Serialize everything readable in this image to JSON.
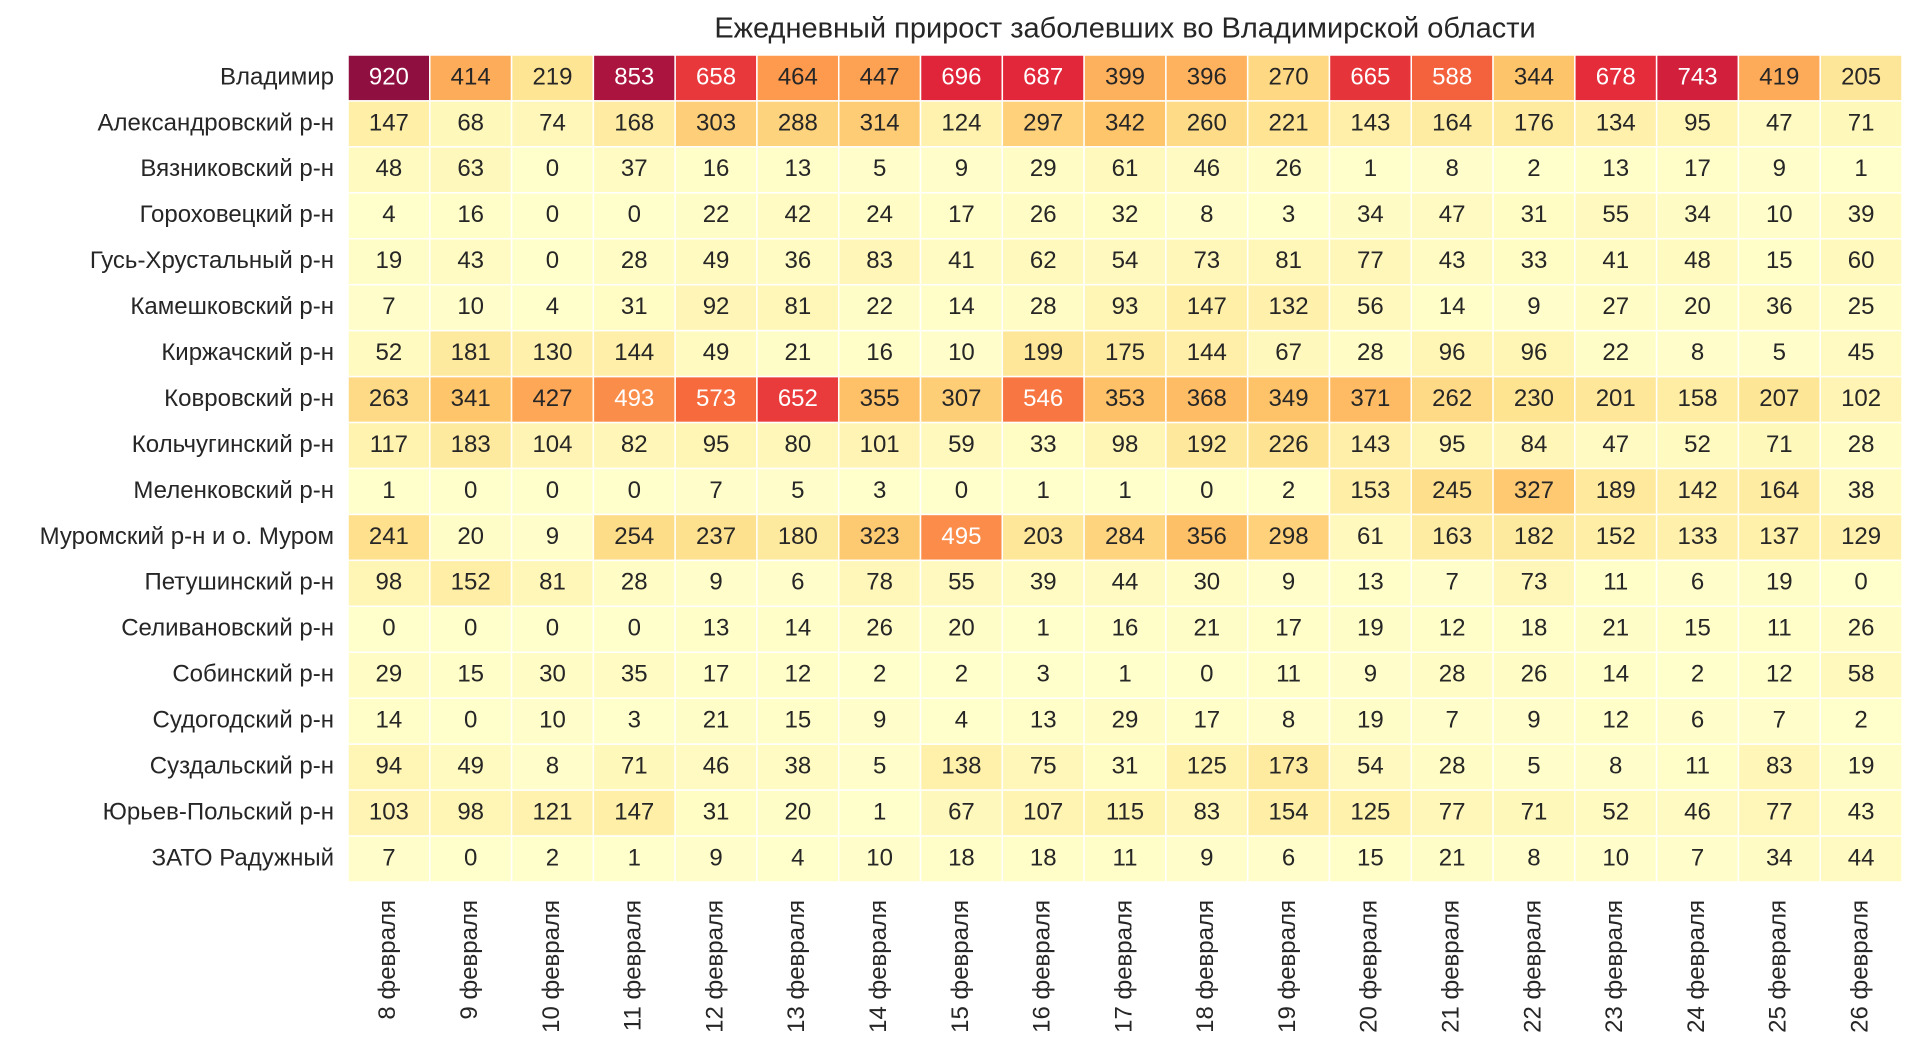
{
  "chart_data": {
    "type": "heatmap",
    "title": "Ежедневный прирост заболевших во Владимирской области",
    "x": [
      "8 февраля",
      "9 февраля",
      "10 февраля",
      "11 февраля",
      "12 февраля",
      "13 февраля",
      "14 февраля",
      "15 февраля",
      "16 февраля",
      "17 февраля",
      "18 февраля",
      "19 февраля",
      "20 февраля",
      "21 февраля",
      "22 февраля",
      "23 февраля",
      "24 февраля",
      "25 февраля",
      "26 февраля"
    ],
    "y": [
      "Владимир",
      "Александровский р-н",
      "Вязниковский р-н",
      "Гороховецкий р-н",
      "Гусь-Хрустальный р-н",
      "Камешковский р-н",
      "Киржачский р-н",
      "Ковровский р-н",
      "Кольчугинский р-н",
      "Меленковский р-н",
      "Муромский р-н и о. Муром",
      "Петушинский р-н",
      "Селивановский р-н",
      "Собинский р-н",
      "Судогодский р-н",
      "Суздальский р-н",
      "Юрьев-Польский р-н",
      "ЗАТО Радужный"
    ],
    "values": [
      [
        920,
        414,
        219,
        853,
        658,
        464,
        447,
        696,
        687,
        399,
        396,
        270,
        665,
        588,
        344,
        678,
        743,
        419,
        205
      ],
      [
        147,
        68,
        74,
        168,
        303,
        288,
        314,
        124,
        297,
        342,
        260,
        221,
        143,
        164,
        176,
        134,
        95,
        47,
        71
      ],
      [
        48,
        63,
        0,
        37,
        16,
        13,
        5,
        9,
        29,
        61,
        46,
        26,
        1,
        8,
        2,
        13,
        17,
        9,
        1
      ],
      [
        4,
        16,
        0,
        0,
        22,
        42,
        24,
        17,
        26,
        32,
        8,
        3,
        34,
        47,
        31,
        55,
        34,
        10,
        39
      ],
      [
        19,
        43,
        0,
        28,
        49,
        36,
        83,
        41,
        62,
        54,
        73,
        81,
        77,
        43,
        33,
        41,
        48,
        15,
        60
      ],
      [
        7,
        10,
        4,
        31,
        92,
        81,
        22,
        14,
        28,
        93,
        147,
        132,
        56,
        14,
        9,
        27,
        20,
        36,
        25
      ],
      [
        52,
        181,
        130,
        144,
        49,
        21,
        16,
        10,
        199,
        175,
        144,
        67,
        28,
        96,
        96,
        22,
        8,
        5,
        45
      ],
      [
        263,
        341,
        427,
        493,
        573,
        652,
        355,
        307,
        546,
        353,
        368,
        349,
        371,
        262,
        230,
        201,
        158,
        207,
        102
      ],
      [
        117,
        183,
        104,
        82,
        95,
        80,
        101,
        59,
        33,
        98,
        192,
        226,
        143,
        95,
        84,
        47,
        52,
        71,
        28
      ],
      [
        1,
        0,
        0,
        0,
        7,
        5,
        3,
        0,
        1,
        1,
        0,
        2,
        153,
        245,
        327,
        189,
        142,
        164,
        38
      ],
      [
        241,
        20,
        9,
        254,
        237,
        180,
        323,
        495,
        203,
        284,
        356,
        298,
        61,
        163,
        182,
        152,
        133,
        137,
        129
      ],
      [
        98,
        152,
        81,
        28,
        9,
        6,
        78,
        55,
        39,
        44,
        30,
        9,
        13,
        7,
        73,
        11,
        6,
        19,
        0
      ],
      [
        0,
        0,
        0,
        0,
        13,
        14,
        26,
        20,
        1,
        16,
        21,
        17,
        19,
        12,
        18,
        21,
        15,
        11,
        26
      ],
      [
        29,
        15,
        30,
        35,
        17,
        12,
        2,
        2,
        3,
        1,
        0,
        11,
        9,
        28,
        26,
        14,
        2,
        12,
        58
      ],
      [
        14,
        0,
        10,
        3,
        21,
        15,
        9,
        4,
        13,
        29,
        17,
        8,
        19,
        7,
        9,
        12,
        6,
        7,
        2
      ],
      [
        94,
        49,
        8,
        71,
        46,
        38,
        5,
        138,
        75,
        31,
        125,
        173,
        54,
        28,
        5,
        8,
        11,
        83,
        19
      ],
      [
        103,
        98,
        121,
        147,
        31,
        20,
        1,
        67,
        107,
        115,
        83,
        154,
        125,
        77,
        71,
        52,
        46,
        77,
        43
      ],
      [
        7,
        0,
        2,
        1,
        9,
        4,
        10,
        18,
        18,
        11,
        9,
        6,
        15,
        21,
        8,
        10,
        7,
        34,
        44
      ]
    ],
    "colormap": [
      "#ffffcc",
      "#fff3b0",
      "#fee391",
      "#fec46a",
      "#fd9c4f",
      "#f6693d",
      "#e2253a",
      "#bd173e",
      "#8f1040"
    ]
  }
}
